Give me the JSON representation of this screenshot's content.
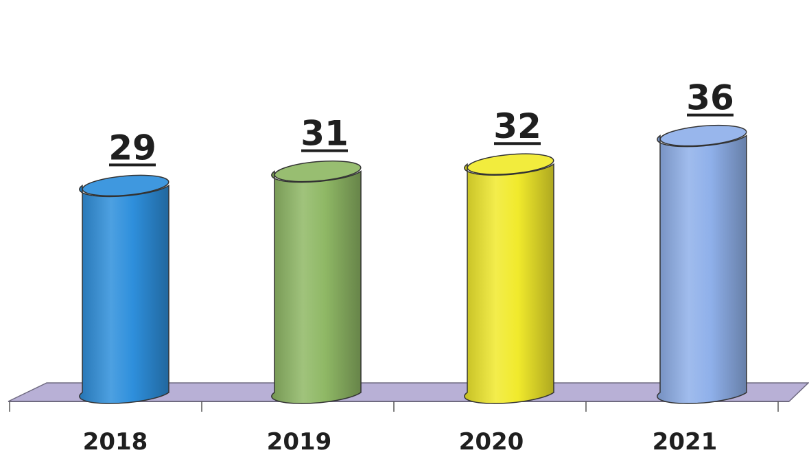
{
  "chart_data": {
    "type": "bar",
    "style": "3d-cylinder",
    "categories": [
      "2018",
      "2019",
      "2020",
      "2021"
    ],
    "values": [
      29,
      31,
      32,
      36
    ],
    "value_labels": [
      "29",
      "31",
      "32",
      "36"
    ],
    "colors": [
      "#2e8fdc",
      "#8fb865",
      "#f1ea2c",
      "#8fb0ea"
    ],
    "floor_color": "#b8b0d6",
    "title": "",
    "xlabel": "",
    "ylabel": "",
    "grid": false,
    "legend": "none"
  }
}
